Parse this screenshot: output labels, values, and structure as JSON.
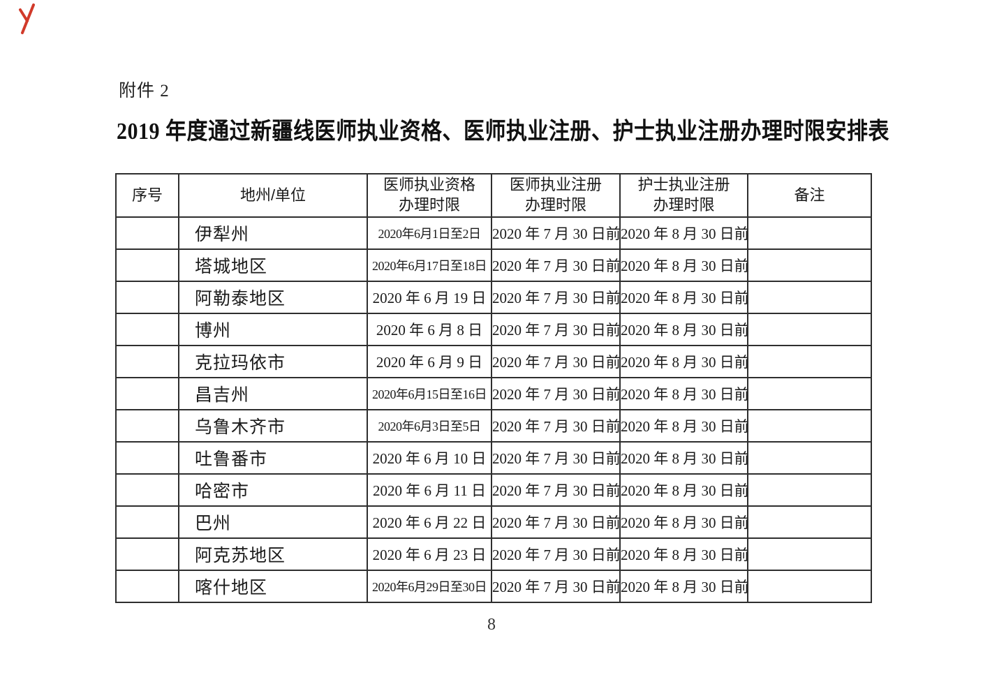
{
  "page": {
    "attachment_label": "附件 2",
    "title": "2019 年度通过新疆线医师执业资格、医师执业注册、护士执业注册办理时限安排表",
    "page_number": "8"
  },
  "icons": {
    "red_corner_mark": "red-angled-annotation-stroke"
  },
  "colors": {
    "text": "#1a1a1a",
    "table_border": "#2e2e2e",
    "corner_mark_red": "#d13a2a",
    "background": "#ffffff"
  },
  "table": {
    "headers": {
      "index": "序号",
      "region": "地州/单位",
      "qualification": "医师执业资格\n办理时限",
      "doctor_registration": "医师执业注册\n办理时限",
      "nurse_registration": "护士执业注册\n办理时限",
      "remarks": "备注"
    },
    "rows": [
      {
        "index": "",
        "region": "伊犁州",
        "qualification": "2020年6月1日至2日",
        "doctor_registration": "2020 年 7 月 30 日前",
        "nurse_registration": "2020 年 8 月 30 日前",
        "remarks": ""
      },
      {
        "index": "",
        "region": "塔城地区",
        "qualification": "2020年6月17日至18日",
        "doctor_registration": "2020 年 7 月 30 日前",
        "nurse_registration": "2020 年 8 月 30 日前",
        "remarks": ""
      },
      {
        "index": "",
        "region": "阿勒泰地区",
        "qualification": "2020 年 6 月 19 日",
        "doctor_registration": "2020 年 7 月 30 日前",
        "nurse_registration": "2020 年 8 月 30 日前",
        "remarks": ""
      },
      {
        "index": "",
        "region": "博州",
        "qualification": "2020 年 6 月 8 日",
        "doctor_registration": "2020 年 7 月 30 日前",
        "nurse_registration": "2020 年 8 月 30 日前",
        "remarks": ""
      },
      {
        "index": "",
        "region": "克拉玛依市",
        "qualification": "2020 年 6 月 9 日",
        "doctor_registration": "2020 年 7 月 30 日前",
        "nurse_registration": "2020 年 8 月 30 日前",
        "remarks": ""
      },
      {
        "index": "",
        "region": "昌吉州",
        "qualification": "2020年6月15日至16日",
        "doctor_registration": "2020 年 7 月 30 日前",
        "nurse_registration": "2020 年 8 月 30 日前",
        "remarks": ""
      },
      {
        "index": "",
        "region": "乌鲁木齐市",
        "qualification": "2020年6月3日至5日",
        "doctor_registration": "2020 年 7 月 30 日前",
        "nurse_registration": "2020 年 8 月 30 日前",
        "remarks": ""
      },
      {
        "index": "",
        "region": "吐鲁番市",
        "qualification": "2020 年 6 月 10 日",
        "doctor_registration": "2020 年 7 月 30 日前",
        "nurse_registration": "2020 年 8 月 30 日前",
        "remarks": ""
      },
      {
        "index": "",
        "region": "哈密市",
        "qualification": "2020 年 6 月 11 日",
        "doctor_registration": "2020 年 7 月 30 日前",
        "nurse_registration": "2020 年 8 月 30 日前",
        "remarks": ""
      },
      {
        "index": "",
        "region": "巴州",
        "qualification": "2020 年 6 月 22 日",
        "doctor_registration": "2020 年 7 月 30 日前",
        "nurse_registration": "2020 年 8 月 30 日前",
        "remarks": ""
      },
      {
        "index": "",
        "region": "阿克苏地区",
        "qualification": "2020 年 6 月 23 日",
        "doctor_registration": "2020 年 7 月 30 日前",
        "nurse_registration": "2020 年 8 月 30 日前",
        "remarks": ""
      },
      {
        "index": "",
        "region": "喀什地区",
        "qualification": "2020年6月29日至30日",
        "doctor_registration": "2020 年 7 月 30 日前",
        "nurse_registration": "2020 年 8 月 30 日前",
        "remarks": ""
      }
    ]
  }
}
